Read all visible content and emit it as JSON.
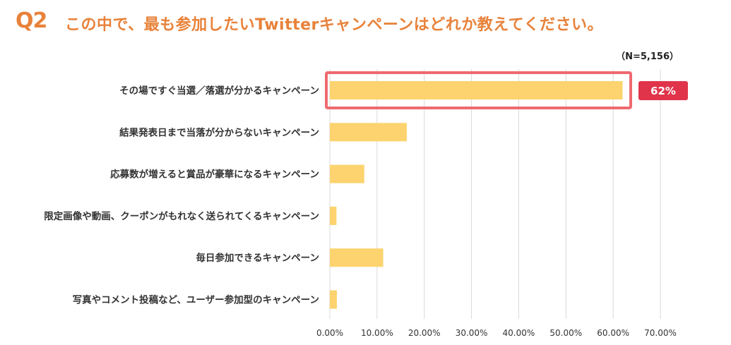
{
  "header": {
    "q_label": "Q2",
    "question": "この中で、最も参加したいTwitterキャンペーンはどれか教えてください。",
    "n_label": "（N=5,156）"
  },
  "colors": {
    "accent": "#e8823a",
    "bar": "#fcd36e",
    "highlight_border": "#ee6a70",
    "badge": "#e0344a",
    "grid": "#d9d9d9"
  },
  "highlight": {
    "category_index": 0,
    "badge_text": "62%"
  },
  "chart_data": {
    "type": "bar",
    "orientation": "horizontal",
    "categories": [
      "その場ですぐ当選／落選が分かるキャンペーン",
      "結果発表日まで当落が分からないキャンペーン",
      "応募数が増えると賞品が豪華になるキャンペーン",
      "限定画像や動画、クーポンがもれなく送られてくるキャンペーン",
      "毎日参加できるキャンペーン",
      "写真やコメント投稿など、ユーザー参加型のキャンペーン"
    ],
    "values": [
      62.0,
      16.3,
      7.3,
      1.4,
      11.3,
      1.5
    ],
    "xlim": [
      0,
      70
    ],
    "xticks": [
      0,
      10,
      20,
      30,
      40,
      50,
      60,
      70
    ],
    "xtick_labels": [
      "0.00%",
      "10.00%",
      "20.00%",
      "30.00%",
      "40.00%",
      "50.00%",
      "60.00%",
      "70.00%"
    ],
    "grid": true,
    "legend": false
  }
}
